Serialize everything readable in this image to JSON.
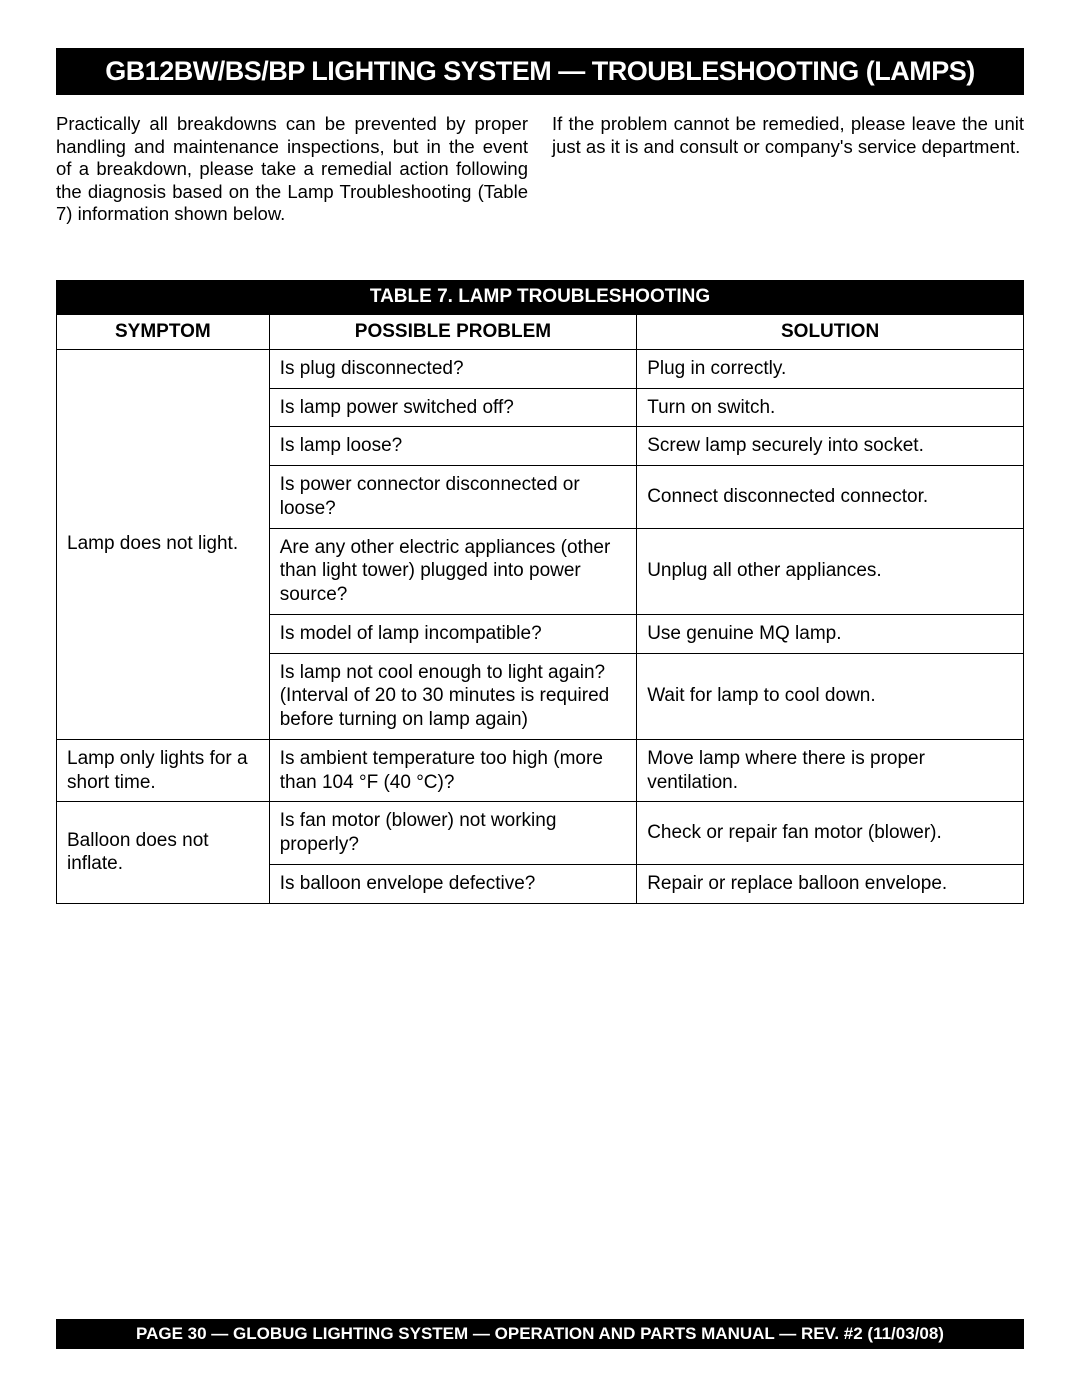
{
  "header": {
    "title": "GB12BW/BS/BP LIGHTING SYSTEM — TROUBLESHOOTING (LAMPS)"
  },
  "intro": {
    "left": "Practically all breakdowns can be prevented by proper handling and maintenance inspections, but in the event of a breakdown, please take a remedial action following the diagnosis based on the Lamp Troubleshooting (Table 7) information shown below.",
    "right": "If the problem cannot be remedied, please leave the unit just as it is and consult or company's service department."
  },
  "table": {
    "title": "TABLE 7. LAMP TROUBLESHOOTING",
    "columns": {
      "symptom": "SYMPTOM",
      "problem": "POSSIBLE PROBLEM",
      "solution": "SOLUTION"
    },
    "groups": [
      {
        "symptom": "Lamp does not light.",
        "rows": [
          {
            "problem": "Is plug disconnected?",
            "solution": "Plug in correctly."
          },
          {
            "problem": "Is lamp power switched off?",
            "solution": "Turn on switch."
          },
          {
            "problem": "Is lamp loose?",
            "solution": "Screw lamp securely into socket."
          },
          {
            "problem": "Is power connector disconnected or loose?",
            "solution": "Connect disconnected connector."
          },
          {
            "problem": "Are any other electric appliances (other than light tower) plugged into power source?",
            "solution": "Unplug all other appliances."
          },
          {
            "problem": "Is model of lamp incompatible?",
            "solution": "Use genuine MQ lamp."
          },
          {
            "problem": "Is lamp not cool enough to light again? (Interval of 20 to 30 minutes is required before turning on lamp again)",
            "solution": "Wait for lamp to cool down."
          }
        ]
      },
      {
        "symptom": "Lamp only lights for a short time.",
        "rows": [
          {
            "problem": "Is ambient temperature too high (more than 104 °F (40 °C)?",
            "solution": "Move lamp where there is proper ventilation."
          }
        ]
      },
      {
        "symptom": "Balloon does not inflate.",
        "rows": [
          {
            "problem": "Is fan motor (blower) not working properly?",
            "solution": "Check or repair fan motor (blower)."
          },
          {
            "problem": "Is balloon envelope defective?",
            "solution": "Repair or replace balloon envelope."
          }
        ]
      }
    ]
  },
  "footer": {
    "text": "PAGE 30 — GLOBUG LIGHTING SYSTEM — OPERATION AND PARTS MANUAL —  REV. #2 (11/03/08)"
  },
  "style": {
    "title_bg": "#000000",
    "title_fg": "#ffffff",
    "border_color": "#000000",
    "body_font": "Arial, Helvetica, sans-serif",
    "title_fontsize": 27,
    "body_fontsize": 19,
    "footer_fontsize": 17
  }
}
